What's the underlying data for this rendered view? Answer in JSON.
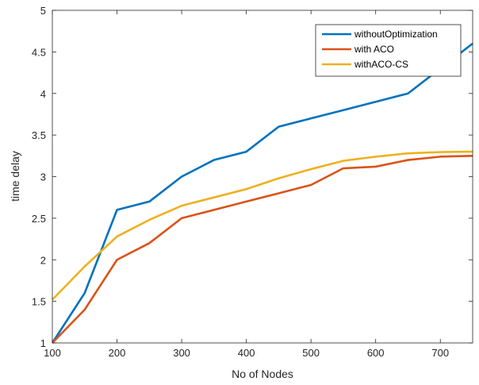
{
  "chart_data": {
    "type": "line",
    "xlabel": "No of Nodes",
    "ylabel": "time delay",
    "xlim": [
      100,
      750
    ],
    "ylim": [
      1,
      5
    ],
    "xticks": [
      100,
      200,
      300,
      400,
      500,
      600,
      700
    ],
    "yticks": [
      1,
      1.5,
      2,
      2.5,
      3,
      3.5,
      4,
      4.5,
      5
    ],
    "x": [
      100,
      150,
      200,
      250,
      300,
      350,
      400,
      450,
      500,
      550,
      600,
      650,
      700,
      750
    ],
    "grid": false,
    "legend_position": "top-right",
    "series": [
      {
        "name": "withoutOptimization",
        "color": "#0072BD",
        "values": [
          1.0,
          1.6,
          2.6,
          2.7,
          3.0,
          3.2,
          3.3,
          3.6,
          3.7,
          3.8,
          3.9,
          4.0,
          4.3,
          4.6
        ]
      },
      {
        "name": "with ACO",
        "color": "#D95319",
        "values": [
          1.0,
          1.4,
          2.0,
          2.2,
          2.5,
          2.6,
          2.7,
          2.8,
          2.9,
          3.1,
          3.12,
          3.2,
          3.24,
          3.25
        ]
      },
      {
        "name": "withACO-CS",
        "color": "#EDB120",
        "values": [
          1.52,
          1.92,
          2.28,
          2.48,
          2.65,
          2.75,
          2.85,
          2.98,
          3.09,
          3.19,
          3.24,
          3.28,
          3.295,
          3.3
        ]
      }
    ]
  }
}
